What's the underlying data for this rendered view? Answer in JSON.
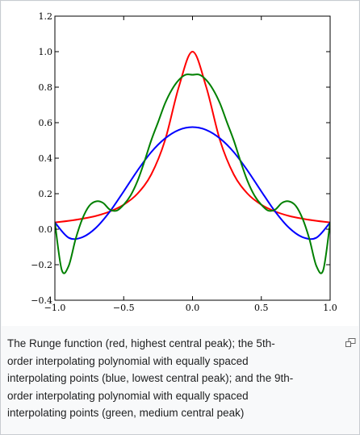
{
  "caption": {
    "text": "The Runge function (red, highest central peak); the 5th-\norder interpolating polynomial with equally spaced\ninterpolating points (blue, lowest central peak); and the 9th-\norder interpolating polynomial with equally spaced\ninterpolating points (green, medium central peak)"
  },
  "icons": {
    "magnify": "magnify-clip-icon"
  },
  "colors": {
    "red": "#ff0000",
    "blue": "#0000ff",
    "green": "#008000"
  },
  "chart_data": {
    "type": "line",
    "title": "",
    "xlabel": "",
    "ylabel": "",
    "xlim": [
      -1.0,
      1.0
    ],
    "ylim": [
      -0.4,
      1.2
    ],
    "grid": false,
    "x_ticks": [
      -1.0,
      -0.5,
      0.0,
      0.5,
      1.0
    ],
    "x_tick_labels": [
      "−1.0",
      "−0.5",
      "0.0",
      "0.5",
      "1.0"
    ],
    "y_ticks": [
      -0.4,
      -0.2,
      0.0,
      0.2,
      0.4,
      0.6,
      0.8,
      1.0,
      1.2
    ],
    "y_tick_labels": [
      "−0.4",
      "−0.2",
      "0.0",
      "0.2",
      "0.4",
      "0.6",
      "0.8",
      "1.0",
      "1.2"
    ],
    "series": [
      {
        "color": "#ff0000",
        "x": [
          -1.0,
          -0.9,
          -0.8,
          -0.7,
          -0.6,
          -0.5,
          -0.4,
          -0.3,
          -0.2,
          -0.1,
          0.0,
          0.1,
          0.2,
          0.3,
          0.4,
          0.5,
          0.6,
          0.7,
          0.8,
          0.9,
          1.0
        ],
        "y": [
          0.038,
          0.047,
          0.059,
          0.075,
          0.1,
          0.138,
          0.2,
          0.308,
          0.5,
          0.8,
          1.0,
          0.8,
          0.5,
          0.308,
          0.2,
          0.138,
          0.1,
          0.075,
          0.059,
          0.047,
          0.038
        ]
      },
      {
        "color": "#0000ff",
        "x": [
          -1.0,
          -0.9,
          -0.8,
          -0.7,
          -0.6,
          -0.5,
          -0.4,
          -0.3,
          -0.2,
          -0.1,
          0.0,
          0.1,
          0.2,
          0.3,
          0.4,
          0.5,
          0.6,
          0.7,
          0.8,
          0.9,
          1.0
        ],
        "y": [
          0.038,
          -0.048,
          -0.045,
          0.009,
          0.1,
          0.213,
          0.33,
          0.434,
          0.511,
          0.559,
          0.575,
          0.559,
          0.511,
          0.434,
          0.33,
          0.213,
          0.1,
          0.009,
          -0.045,
          -0.048,
          0.038
        ]
      },
      {
        "color": "#008000",
        "x": [
          -1.0,
          -0.95,
          -0.9,
          -0.85,
          -0.8,
          -0.75,
          -0.7,
          -0.65,
          -0.6,
          -0.55,
          -0.5,
          -0.45,
          -0.4,
          -0.35,
          -0.3,
          -0.25,
          -0.2,
          -0.15,
          -0.1,
          -0.05,
          0.0,
          0.05,
          0.1,
          0.15,
          0.2,
          0.25,
          0.3,
          0.35,
          0.4,
          0.45,
          0.5,
          0.55,
          0.6,
          0.65,
          0.7,
          0.75,
          0.8,
          0.85,
          0.9,
          0.95,
          1.0
        ],
        "y": [
          0.038,
          -0.23,
          -0.207,
          -0.057,
          0.059,
          0.132,
          0.157,
          0.148,
          0.11,
          0.105,
          0.138,
          0.19,
          0.271,
          0.38,
          0.5,
          0.603,
          0.708,
          0.786,
          0.84,
          0.87,
          0.87,
          0.87,
          0.84,
          0.786,
          0.708,
          0.603,
          0.5,
          0.38,
          0.271,
          0.19,
          0.138,
          0.105,
          0.11,
          0.148,
          0.157,
          0.132,
          0.059,
          -0.057,
          -0.207,
          -0.23,
          0.038
        ]
      }
    ]
  }
}
